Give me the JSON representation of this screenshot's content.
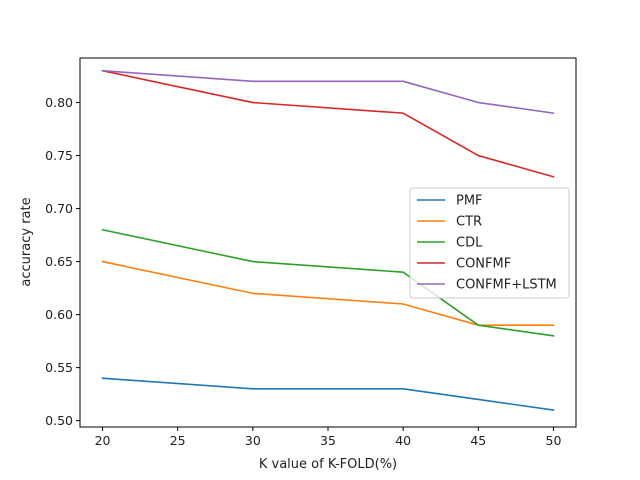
{
  "chart_data": {
    "type": "line",
    "title": "",
    "xlabel": "K value of K-FOLD(%)",
    "ylabel": "accuracy rate",
    "xlim": [
      18.5,
      51.5
    ],
    "ylim": [
      0.494,
      0.842
    ],
    "xticks": [
      20,
      25,
      30,
      35,
      40,
      45,
      50
    ],
    "yticks": [
      0.5,
      0.55,
      0.6,
      0.65,
      0.7,
      0.75,
      0.8
    ],
    "ytick_labels": [
      "0.50",
      "0.55",
      "0.60",
      "0.65",
      "0.70",
      "0.75",
      "0.80"
    ],
    "grid": false,
    "legend_position": "center-right",
    "x": [
      20,
      30,
      40,
      45,
      50
    ],
    "series": [
      {
        "name": "PMF",
        "color": "#1f77b4",
        "values": [
          0.54,
          0.53,
          0.53,
          0.52,
          0.51
        ]
      },
      {
        "name": "CTR",
        "color": "#ff7f0e",
        "values": [
          0.65,
          0.62,
          0.61,
          0.59,
          0.59
        ]
      },
      {
        "name": "CDL",
        "color": "#2ca02c",
        "values": [
          0.68,
          0.65,
          0.64,
          0.59,
          0.58
        ]
      },
      {
        "name": "CONFMF",
        "color": "#d62728",
        "values": [
          0.83,
          0.8,
          0.79,
          0.75,
          0.73
        ]
      },
      {
        "name": "CONFMF+LSTM",
        "color": "#9467bd",
        "values": [
          0.83,
          0.82,
          0.82,
          0.8,
          0.79
        ]
      }
    ]
  }
}
